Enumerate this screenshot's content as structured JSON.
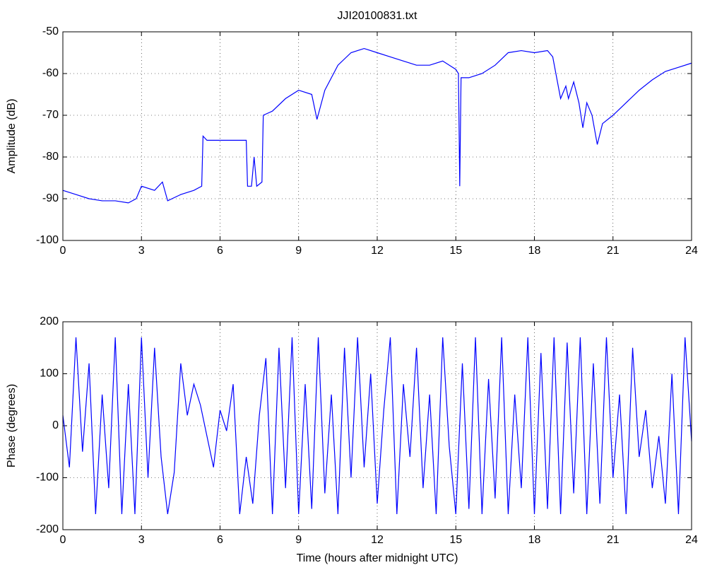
{
  "chart_data": [
    {
      "type": "line",
      "title": "JJI20100831.txt",
      "ylabel": "Amplitude (dB)",
      "grid": true,
      "x": [
        0,
        0.5,
        1,
        1.5,
        2,
        2.5,
        2.8,
        3,
        3.5,
        3.8,
        4,
        4.5,
        5,
        5.3,
        5.35,
        5.5,
        6,
        6.5,
        7,
        7.05,
        7.2,
        7.3,
        7.4,
        7.6,
        7.65,
        8,
        8.5,
        9,
        9.5,
        9.7,
        10,
        10.5,
        11,
        11.5,
        12,
        12.5,
        13,
        13.5,
        14,
        14.5,
        15,
        15.1,
        15.15,
        15.2,
        15.5,
        16,
        16.5,
        17,
        17.5,
        18,
        18.5,
        18.7,
        19,
        19.2,
        19.3,
        19.5,
        19.7,
        19.85,
        20,
        20.2,
        20.4,
        20.6,
        21,
        21.5,
        22,
        22.5,
        23,
        23.5,
        24
      ],
      "series": [
        {
          "color": "#0000ff",
          "values": [
            -88,
            -89,
            -90,
            -90.5,
            -90.5,
            -91,
            -90,
            -87,
            -88,
            -86,
            -90.5,
            -89,
            -88,
            -87,
            -75,
            -76,
            -76,
            -76,
            -76,
            -87,
            -87,
            -80,
            -87,
            -86,
            -70,
            -69,
            -66,
            -64,
            -65,
            -71,
            -64,
            -58,
            -55,
            -54,
            -55,
            -56,
            -57,
            -58,
            -58,
            -57,
            -59,
            -60,
            -87,
            -61,
            -61,
            -60,
            -58,
            -55,
            -54.5,
            -55,
            -54.5,
            -56,
            -66,
            -63,
            -66,
            -62,
            -67,
            -73,
            -67,
            -70,
            -77,
            -72,
            -70,
            -67,
            -64,
            -61.5,
            -59.5,
            -58.5,
            -57.5
          ]
        }
      ],
      "xlim": [
        0,
        24
      ],
      "xticks": [
        0,
        3,
        6,
        9,
        12,
        15,
        18,
        21,
        24
      ],
      "ylim": [
        -100,
        -50
      ],
      "yticks": [
        -100,
        -90,
        -80,
        -70,
        -60,
        -50
      ]
    },
    {
      "type": "line",
      "xlabel": "Time (hours after midnight UTC)",
      "ylabel": "Phase (degrees)",
      "grid": true,
      "x": [
        0,
        0.25,
        0.5,
        0.75,
        1,
        1.25,
        1.5,
        1.75,
        2,
        2.25,
        2.5,
        2.75,
        3,
        3.25,
        3.5,
        3.75,
        4,
        4.25,
        4.5,
        4.75,
        5,
        5.25,
        5.5,
        5.75,
        6,
        6.25,
        6.5,
        6.75,
        7,
        7.25,
        7.5,
        7.75,
        8,
        8.25,
        8.5,
        8.75,
        9,
        9.25,
        9.5,
        9.75,
        10,
        10.25,
        10.5,
        10.75,
        11,
        11.25,
        11.5,
        11.75,
        12,
        12.25,
        12.5,
        12.75,
        13,
        13.25,
        13.5,
        13.75,
        14,
        14.25,
        14.5,
        14.75,
        15,
        15.25,
        15.5,
        15.75,
        16,
        16.25,
        16.5,
        16.75,
        17,
        17.25,
        17.5,
        17.75,
        18,
        18.25,
        18.5,
        18.75,
        19,
        19.25,
        19.5,
        19.75,
        20,
        20.25,
        20.5,
        20.75,
        21,
        21.25,
        21.5,
        21.75,
        22,
        22.25,
        22.5,
        22.75,
        23,
        23.25,
        23.5,
        23.75,
        24
      ],
      "series": [
        {
          "color": "#0000ff",
          "values": [
            20,
            -80,
            170,
            -50,
            120,
            -170,
            60,
            -120,
            170,
            -170,
            80,
            -170,
            170,
            -100,
            150,
            -60,
            -170,
            -90,
            120,
            20,
            80,
            40,
            -20,
            -80,
            30,
            -10,
            80,
            -170,
            -60,
            -150,
            20,
            130,
            -170,
            150,
            -120,
            170,
            -170,
            80,
            -160,
            170,
            -130,
            60,
            -170,
            150,
            -100,
            170,
            -80,
            100,
            -150,
            30,
            170,
            -170,
            80,
            -60,
            150,
            -120,
            60,
            -170,
            170,
            -40,
            -170,
            120,
            -160,
            170,
            -170,
            90,
            -140,
            170,
            -170,
            60,
            -120,
            170,
            -170,
            140,
            -160,
            170,
            -170,
            160,
            -130,
            170,
            -170,
            120,
            -150,
            170,
            -100,
            60,
            -170,
            150,
            -60,
            30,
            -120,
            -20,
            -150,
            100,
            -170,
            170,
            -30
          ]
        }
      ],
      "xlim": [
        0,
        24
      ],
      "xticks": [
        0,
        3,
        6,
        9,
        12,
        15,
        18,
        21,
        24
      ],
      "ylim": [
        -200,
        200
      ],
      "yticks": [
        -200,
        -100,
        0,
        100,
        200
      ]
    }
  ]
}
